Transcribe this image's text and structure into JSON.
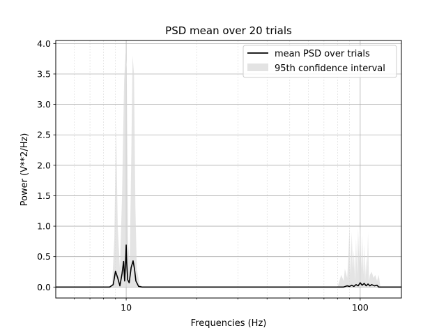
{
  "chart_data": {
    "type": "line",
    "title": "PSD mean over 20 trials",
    "xlabel": "Frequencies (Hz)",
    "ylabel": "Power (V**2/Hz)",
    "x_scale": "log",
    "xlim": [
      5,
      150
    ],
    "ylim": [
      -0.18,
      4.05
    ],
    "x_tick_labels": [
      "10",
      "100"
    ],
    "y_tick_labels": [
      "0.0",
      "0.5",
      "1.0",
      "1.5",
      "2.0",
      "2.5",
      "3.0",
      "3.5",
      "4.0"
    ],
    "grid": true,
    "legend_position": "top-right",
    "series": [
      {
        "name": "mean PSD over trials",
        "kind": "line",
        "color": "#000000",
        "x": [
          5,
          8.5,
          8.8,
          9.0,
          9.2,
          9.4,
          9.6,
          9.75,
          9.85,
          9.95,
          10.0,
          10.05,
          10.15,
          10.3,
          10.5,
          10.7,
          10.85,
          11.0,
          11.3,
          11.7,
          20,
          50,
          85,
          88,
          90,
          92,
          94,
          96,
          98,
          100,
          102,
          104,
          106,
          108,
          110,
          112,
          115,
          118,
          120,
          150
        ],
        "y": [
          0,
          0,
          0.04,
          0.26,
          0.15,
          0.02,
          0.22,
          0.42,
          0.1,
          0.45,
          0.69,
          0.4,
          0.12,
          0.07,
          0.32,
          0.43,
          0.3,
          0.1,
          0.01,
          0,
          0,
          0,
          0,
          0.02,
          0.01,
          0.03,
          0.01,
          0.04,
          0.02,
          0.07,
          0.03,
          0.06,
          0.02,
          0.05,
          0.02,
          0.04,
          0.02,
          0.03,
          0,
          0
        ]
      },
      {
        "name": "95th confidence interval",
        "kind": "band",
        "color": "#d9d9d9",
        "x": [
          5,
          8.7,
          8.9,
          9.05,
          9.2,
          9.4,
          9.6,
          9.8,
          9.95,
          10.05,
          10.2,
          10.35,
          10.5,
          10.65,
          10.8,
          10.95,
          11.1,
          11.4,
          11.7,
          20,
          50,
          80,
          83,
          85,
          86,
          88,
          89,
          90,
          91,
          92,
          93,
          94,
          95,
          96,
          97,
          98,
          99,
          100,
          101,
          102,
          103,
          104,
          105,
          106,
          107,
          108,
          109,
          110,
          112,
          114,
          116,
          118,
          120,
          122,
          150
        ],
        "upper": [
          0,
          0,
          0.8,
          2.7,
          1.0,
          0.3,
          1.5,
          3.4,
          3.85,
          3.6,
          0.7,
          0.4,
          2.0,
          3.8,
          3.5,
          1.3,
          0.3,
          0.05,
          0,
          0,
          0,
          0,
          0.2,
          0.1,
          0.3,
          0.15,
          0.5,
          1.0,
          0.2,
          0.9,
          0.3,
          0.6,
          0.1,
          0.8,
          0.2,
          0.95,
          0.4,
          1.0,
          0.3,
          0.85,
          0.2,
          0.7,
          0.1,
          0.5,
          0.2,
          0.9,
          0.1,
          0.2,
          0.25,
          0.15,
          0.2,
          0.1,
          0.2,
          0,
          0
        ],
        "lower": [
          0,
          0,
          0,
          0,
          0,
          0,
          0,
          0,
          0,
          0,
          0,
          0,
          0,
          0,
          0,
          0,
          0,
          0,
          0,
          0,
          0,
          0,
          0,
          0,
          0,
          0,
          0,
          0,
          0,
          0,
          0,
          0,
          0,
          0,
          0,
          0,
          0,
          0,
          0,
          0,
          0,
          0,
          0,
          0,
          0,
          0,
          0,
          0,
          0,
          0,
          0,
          0,
          0,
          0,
          0
        ]
      }
    ]
  }
}
